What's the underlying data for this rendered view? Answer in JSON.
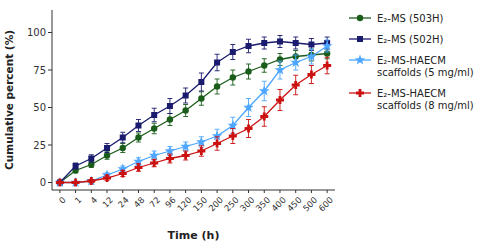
{
  "chart_data": {
    "type": "line",
    "x_label": "Time (h)",
    "y_label": "Cumulative percent (%)",
    "categories": [
      "0",
      "1",
      "4",
      "12",
      "24",
      "48",
      "72",
      "96",
      "120",
      "150",
      "200",
      "250",
      "300",
      "350",
      "400",
      "450",
      "500",
      "600"
    ],
    "ylim": [
      -5,
      115
    ],
    "yticks": [
      0,
      25,
      50,
      75,
      100
    ],
    "grid": false,
    "legend": "right",
    "series": [
      {
        "name": "E₂-MS (503H)",
        "color": "#1a5c1a",
        "marker": "circle",
        "values": [
          0,
          8,
          12,
          18,
          23,
          30,
          36,
          42,
          48,
          56,
          64,
          70,
          74,
          78,
          82,
          84,
          85,
          86
        ],
        "errors": [
          0,
          1.5,
          2,
          2.5,
          3,
          3,
          3.5,
          4,
          4,
          4.5,
          5,
          5,
          5,
          4.5,
          4,
          4,
          4,
          3.5
        ]
      },
      {
        "name": "E₂-MS (502H)",
        "color": "#1a1a6e",
        "marker": "square",
        "values": [
          0,
          11,
          16,
          23,
          30,
          38,
          45,
          51,
          58,
          67,
          80,
          87,
          91,
          93,
          94,
          93,
          92,
          93
        ],
        "errors": [
          0,
          2,
          2.5,
          3,
          3.5,
          4,
          4.5,
          5,
          5,
          6,
          5.5,
          5,
          4.5,
          4,
          4,
          4,
          4,
          4
        ]
      },
      {
        "name": "E₂-MS-HAECM\nscaffolds (5 mg/ml)",
        "color": "#4da6ff",
        "marker": "star",
        "values": [
          0,
          0,
          1,
          5,
          9,
          14,
          18,
          21,
          24,
          27,
          31,
          38,
          50,
          61,
          75,
          80,
          84,
          91
        ],
        "errors": [
          0,
          0.5,
          1,
          1.5,
          2,
          2.5,
          3,
          3,
          3,
          3.5,
          4.5,
          5.5,
          6,
          6.5,
          6,
          5,
          5,
          4
        ]
      },
      {
        "name": "E₂-MS-HAECM\nscaffolds (8 mg/ml)",
        "color": "#cc1111",
        "marker": "plus",
        "values": [
          0,
          0,
          1,
          3,
          6,
          10,
          13,
          16,
          18,
          21,
          26,
          31,
          36,
          44,
          55,
          65,
          72,
          78
        ],
        "errors": [
          0,
          0.5,
          1,
          1.5,
          2,
          2.5,
          2.5,
          3,
          3,
          3.5,
          4.5,
          5,
          6,
          6.5,
          7,
          6.5,
          6,
          5.5
        ]
      }
    ]
  }
}
